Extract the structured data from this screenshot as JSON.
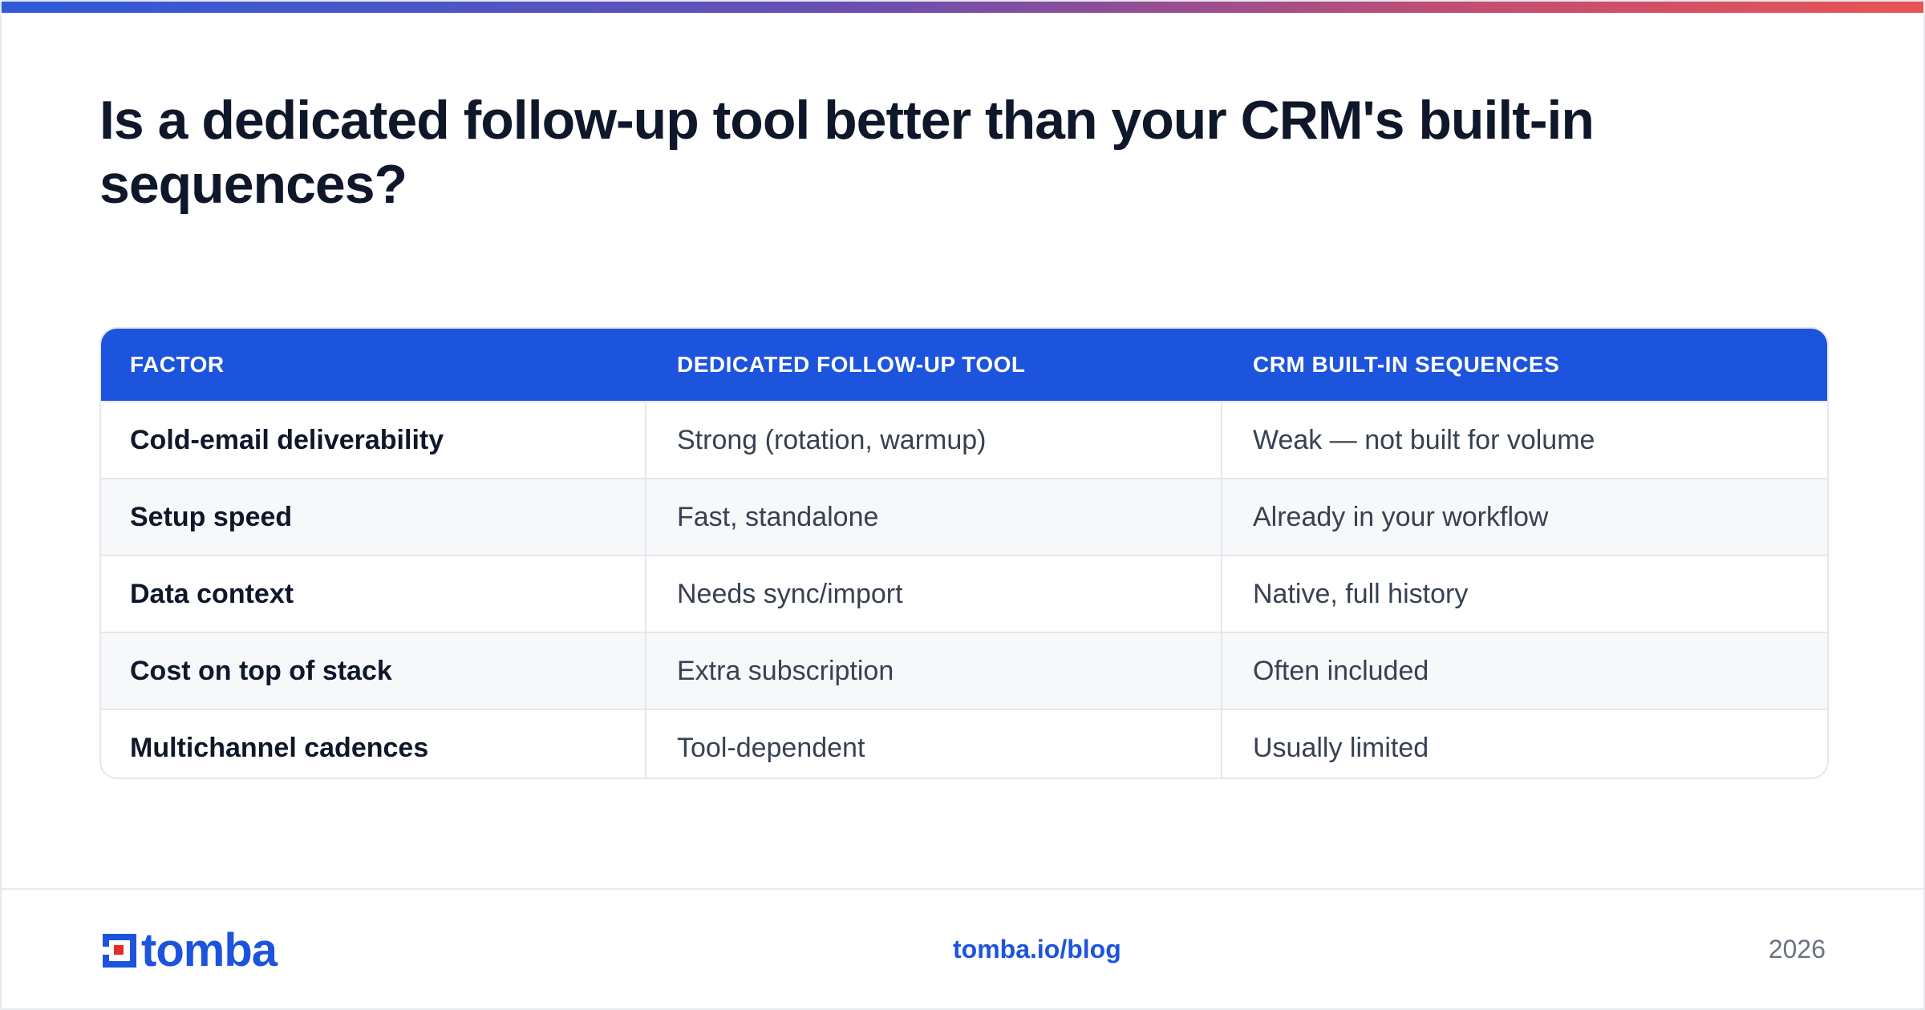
{
  "title": "Is a dedicated follow-up tool better than your CRM's built-in sequences?",
  "table": {
    "headers": [
      "FACTOR",
      "DEDICATED FOLLOW-UP TOOL",
      "CRM BUILT-IN SEQUENCES"
    ],
    "rows": [
      [
        "Cold-email deliverability",
        "Strong (rotation, warmup)",
        "Weak — not built for volume"
      ],
      [
        "Setup speed",
        "Fast, standalone",
        "Already in your workflow"
      ],
      [
        "Data context",
        "Needs sync/import",
        "Native, full history"
      ],
      [
        "Cost on top of stack",
        "Extra subscription",
        "Often included"
      ],
      [
        "Multichannel cadences",
        "Tool-dependent",
        "Usually limited"
      ]
    ]
  },
  "footer": {
    "logo_text": "tomba",
    "link": "tomba.io/blog",
    "year": "2026"
  },
  "colors": {
    "accent": "#1d54dd",
    "logo_red": "#e32b2b",
    "title": "#0f172a"
  }
}
